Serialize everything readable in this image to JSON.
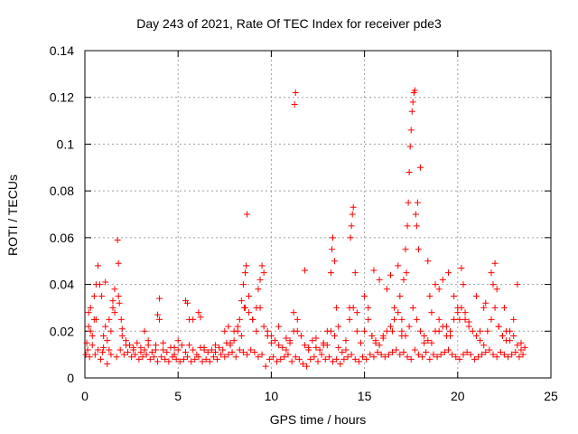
{
  "chart_data": {
    "type": "scatter",
    "title": "Day 243 of 2021, Rate Of TEC Index for receiver pde3",
    "xlabel": "GPS time / hours",
    "ylabel": "ROTI / TECUs",
    "xlim": [
      0,
      25
    ],
    "ylim": [
      0,
      0.14
    ],
    "xticks": [
      "0",
      "5",
      "10",
      "15",
      "20",
      "25"
    ],
    "yticks": [
      "0",
      "0.02",
      "0.04",
      "0.06",
      "0.08",
      "0.1",
      "0.12",
      "0.14"
    ],
    "grid": true,
    "marker": "+",
    "color": "#ff0000",
    "series": [
      {
        "x": [
          0.1,
          0.2,
          0.3,
          0.5,
          0.6,
          0.8,
          1.0,
          1.1,
          1.3,
          1.5,
          1.6,
          1.8,
          2.0,
          2.2,
          2.4,
          2.6,
          2.8,
          3.0,
          3.2,
          3.4,
          3.6,
          3.8,
          4.0,
          4.2,
          4.4,
          4.6,
          4.8,
          5.0,
          5.2,
          5.4,
          5.6,
          5.8,
          6.0,
          6.2,
          6.4,
          6.6,
          6.8,
          7.0,
          7.2,
          7.4,
          7.6,
          7.8,
          8.0,
          8.2,
          8.4,
          8.6,
          8.8,
          9.0,
          9.2,
          9.4,
          9.6,
          9.8,
          10.0,
          10.2,
          10.4,
          10.6,
          10.8,
          11.0,
          11.2,
          11.4,
          11.6,
          11.8,
          12.0,
          12.2,
          12.4,
          12.6,
          12.8,
          13.0,
          13.2,
          13.4,
          13.6,
          13.8,
          14.0,
          14.2,
          14.4,
          14.6,
          14.8,
          15.0,
          15.2,
          15.4,
          15.6,
          15.8,
          16.0,
          16.2,
          16.4,
          16.6,
          16.8,
          17.0,
          17.2,
          17.4,
          17.6,
          17.8,
          18.0,
          18.2,
          18.4,
          18.6,
          18.8,
          19.0,
          19.2,
          19.4,
          19.6,
          19.8,
          20.0,
          20.2,
          20.4,
          20.6,
          20.8,
          21.0,
          21.2,
          21.4,
          21.6,
          21.8,
          22.0,
          22.2,
          22.4,
          22.6,
          22.8,
          23.0,
          23.2,
          23.4,
          23.6
        ],
        "y": [
          0.015,
          0.028,
          0.02,
          0.035,
          0.025,
          0.04,
          0.018,
          0.022,
          0.012,
          0.03,
          0.028,
          0.035,
          0.018,
          0.016,
          0.014,
          0.012,
          0.015,
          0.013,
          0.012,
          0.016,
          0.011,
          0.014,
          0.025,
          0.012,
          0.011,
          0.013,
          0.01,
          0.012,
          0.014,
          0.011,
          0.025,
          0.012,
          0.01,
          0.013,
          0.012,
          0.011,
          0.012,
          0.014,
          0.013,
          0.012,
          0.015,
          0.014,
          0.016,
          0.02,
          0.018,
          0.03,
          0.035,
          0.025,
          0.02,
          0.03,
          0.022,
          0.018,
          0.015,
          0.016,
          0.014,
          0.013,
          0.012,
          0.015,
          0.02,
          0.025,
          0.018,
          0.014,
          0.012,
          0.016,
          0.013,
          0.012,
          0.015,
          0.014,
          0.02,
          0.018,
          0.013,
          0.011,
          0.012,
          0.025,
          0.03,
          0.028,
          0.015,
          0.02,
          0.025,
          0.018,
          0.016,
          0.014,
          0.018,
          0.02,
          0.022,
          0.025,
          0.028,
          0.02,
          0.018,
          0.022,
          0.03,
          0.025,
          0.02,
          0.018,
          0.016,
          0.015,
          0.02,
          0.025,
          0.022,
          0.018,
          0.02,
          0.025,
          0.028,
          0.03,
          0.025,
          0.022,
          0.02,
          0.018,
          0.016,
          0.014,
          0.02,
          0.025,
          0.03,
          0.022,
          0.018,
          0.016,
          0.02,
          0.018,
          0.014,
          0.012,
          0.013
        ]
      },
      {
        "x": [
          0.05,
          0.15,
          0.25,
          0.4,
          0.55,
          0.7,
          0.85,
          0.95,
          1.2,
          1.4,
          1.7,
          1.9,
          2.1,
          2.3,
          2.5,
          2.7,
          2.9,
          3.1,
          3.3,
          3.5,
          3.7,
          3.9,
          4.1,
          4.3,
          4.5,
          4.7,
          4.9,
          5.1,
          5.3,
          5.5,
          5.7,
          5.9,
          6.1,
          6.3,
          6.5,
          6.7,
          6.9,
          7.1,
          7.3,
          7.5,
          7.7,
          7.9,
          8.1,
          8.3,
          8.5,
          8.7,
          8.9,
          9.1,
          9.3,
          9.5,
          9.7,
          9.9,
          10.1,
          10.3,
          10.5,
          10.7,
          10.9,
          11.1,
          11.3,
          11.5,
          11.7,
          11.9,
          12.1,
          12.3,
          12.5,
          12.7,
          12.9,
          13.1,
          13.3,
          13.5,
          13.7,
          13.9,
          14.1,
          14.3,
          14.5,
          14.7,
          14.9,
          15.1,
          15.3,
          15.5,
          15.7,
          15.9,
          16.1,
          16.3,
          16.5,
          16.7,
          16.9,
          17.1,
          17.3,
          17.5,
          17.7,
          17.9,
          18.1,
          18.3,
          18.5,
          18.7,
          18.9,
          19.1,
          19.3,
          19.5,
          19.7,
          19.9,
          20.1,
          20.3,
          20.5,
          20.7,
          20.9,
          21.1,
          21.3,
          21.5,
          21.7,
          21.9,
          22.1,
          22.3,
          22.5,
          22.7,
          22.9,
          23.1,
          23.3,
          23.5
        ],
        "y": [
          0.01,
          0.012,
          0.009,
          0.014,
          0.01,
          0.012,
          0.008,
          0.011,
          0.006,
          0.01,
          0.009,
          0.012,
          0.01,
          0.011,
          0.009,
          0.01,
          0.008,
          0.009,
          0.01,
          0.008,
          0.009,
          0.007,
          0.009,
          0.008,
          0.007,
          0.009,
          0.008,
          0.007,
          0.008,
          0.009,
          0.007,
          0.008,
          0.009,
          0.007,
          0.008,
          0.007,
          0.009,
          0.008,
          0.01,
          0.009,
          0.01,
          0.011,
          0.009,
          0.012,
          0.011,
          0.01,
          0.012,
          0.011,
          0.009,
          0.01,
          0.005,
          0.008,
          0.009,
          0.007,
          0.008,
          0.009,
          0.01,
          0.007,
          0.009,
          0.008,
          0.006,
          0.005,
          0.008,
          0.009,
          0.007,
          0.01,
          0.008,
          0.009,
          0.007,
          0.008,
          0.006,
          0.008,
          0.009,
          0.01,
          0.008,
          0.007,
          0.009,
          0.008,
          0.01,
          0.009,
          0.011,
          0.01,
          0.009,
          0.01,
          0.011,
          0.012,
          0.01,
          0.011,
          0.009,
          0.008,
          0.012,
          0.01,
          0.009,
          0.011,
          0.008,
          0.01,
          0.009,
          0.01,
          0.011,
          0.012,
          0.01,
          0.009,
          0.008,
          0.01,
          0.011,
          0.01,
          0.008,
          0.009,
          0.01,
          0.011,
          0.012,
          0.01,
          0.009,
          0.011,
          0.01,
          0.009,
          0.01,
          0.011,
          0.009,
          0.01
        ]
      },
      {
        "x": [
          0.3,
          0.5,
          0.6,
          0.7,
          0.9,
          1.1,
          1.3,
          1.5,
          1.6,
          1.75,
          1.8,
          1.85,
          1.95,
          2.0,
          3.2,
          3.9,
          4.0,
          5.4,
          5.5,
          5.8,
          6.1,
          6.2,
          7.5,
          7.7,
          8.3,
          8.4,
          8.5,
          8.55,
          8.6,
          8.65,
          8.7,
          9.3,
          9.4,
          9.5,
          9.6,
          11.2,
          11.25,
          11.3,
          11.8,
          13.2,
          13.25,
          13.3,
          13.4,
          13.5,
          14.2,
          14.25,
          14.3,
          14.35,
          14.4,
          14.5,
          15.0,
          15.2,
          15.5,
          15.8,
          16.2,
          16.4,
          16.6,
          16.8,
          16.9,
          17.0,
          17.1,
          17.2,
          17.25,
          17.3,
          17.35,
          17.4,
          17.45,
          17.5,
          17.55,
          17.6,
          17.65,
          17.7,
          17.75,
          17.8,
          17.85,
          17.9,
          18.0,
          18.4,
          18.5,
          18.8,
          19.0,
          19.2,
          19.5,
          19.8,
          20.0,
          20.1,
          20.2,
          20.3,
          21.0,
          21.5,
          21.8,
          21.9,
          22.0,
          22.1,
          22.5,
          23.0,
          23.2
        ],
        "y": [
          0.03,
          0.025,
          0.04,
          0.048,
          0.035,
          0.041,
          0.025,
          0.033,
          0.038,
          0.059,
          0.049,
          0.032,
          0.025,
          0.021,
          0.02,
          0.027,
          0.034,
          0.033,
          0.032,
          0.025,
          0.028,
          0.026,
          0.02,
          0.022,
          0.025,
          0.033,
          0.04,
          0.03,
          0.045,
          0.048,
          0.07,
          0.038,
          0.042,
          0.048,
          0.045,
          0.028,
          0.117,
          0.122,
          0.046,
          0.045,
          0.055,
          0.06,
          0.05,
          0.03,
          0.03,
          0.06,
          0.065,
          0.07,
          0.073,
          0.045,
          0.035,
          0.03,
          0.046,
          0.042,
          0.038,
          0.044,
          0.03,
          0.048,
          0.035,
          0.025,
          0.042,
          0.055,
          0.045,
          0.065,
          0.075,
          0.088,
          0.099,
          0.106,
          0.114,
          0.118,
          0.122,
          0.123,
          0.07,
          0.065,
          0.075,
          0.055,
          0.09,
          0.05,
          0.035,
          0.04,
          0.038,
          0.042,
          0.045,
          0.035,
          0.03,
          0.025,
          0.047,
          0.04,
          0.035,
          0.032,
          0.045,
          0.04,
          0.049,
          0.038,
          0.03,
          0.025,
          0.04
        ]
      },
      {
        "x": [
          0.2,
          0.4,
          1.0,
          1.2,
          1.4,
          2.2,
          2.6,
          3.0,
          3.4,
          3.8,
          4.2,
          4.8,
          5.0,
          5.6,
          6.4,
          7.0,
          7.8,
          8.0,
          8.2,
          8.8,
          9.0,
          9.2,
          9.8,
          10.0,
          10.4,
          10.8,
          11.0,
          11.4,
          12.0,
          12.4,
          12.8,
          13.0,
          13.6,
          14.0,
          14.6,
          15.4,
          15.6,
          16.0,
          16.5,
          17.0,
          18.2,
          18.6,
          19.0,
          19.4,
          19.6,
          20.4,
          20.6,
          21.2,
          21.4,
          22.2,
          22.4,
          22.6,
          22.8,
          23.4
        ],
        "y": [
          0.022,
          0.018,
          0.013,
          0.016,
          0.02,
          0.014,
          0.013,
          0.011,
          0.014,
          0.012,
          0.015,
          0.013,
          0.016,
          0.014,
          0.013,
          0.011,
          0.015,
          0.02,
          0.022,
          0.028,
          0.025,
          0.03,
          0.02,
          0.018,
          0.022,
          0.017,
          0.016,
          0.02,
          0.013,
          0.017,
          0.014,
          0.02,
          0.022,
          0.016,
          0.02,
          0.018,
          0.015,
          0.017,
          0.02,
          0.018,
          0.015,
          0.028,
          0.02,
          0.022,
          0.018,
          0.028,
          0.024,
          0.02,
          0.03,
          0.022,
          0.018,
          0.02,
          0.016,
          0.015
        ]
      }
    ]
  }
}
